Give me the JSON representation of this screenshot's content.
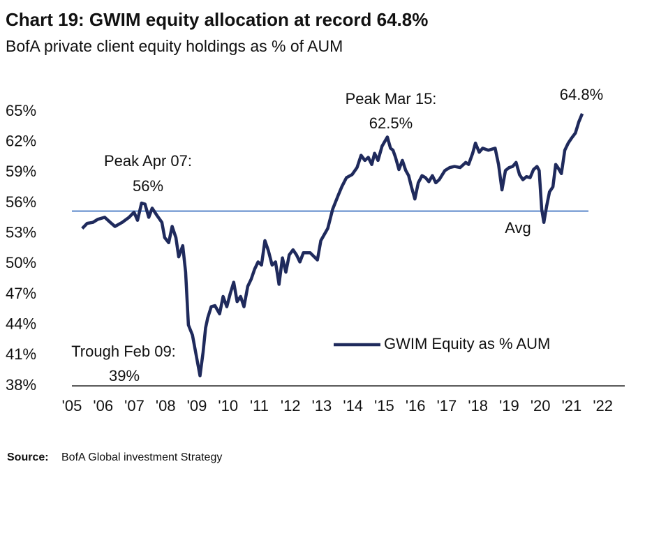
{
  "chart_data": {
    "type": "line",
    "title": "Chart 19: GWIM equity allocation at record 64.8%",
    "subtitle": "BofA private client equity holdings as % of AUM",
    "source_label": "Source:",
    "source": "BofA Global investment Strategy",
    "annotations": [
      {
        "text": "Peak Apr 07:",
        "value_text": "56%"
      },
      {
        "text": "Trough Feb 09:",
        "value_text": "39%"
      },
      {
        "text": "Peak Mar 15:",
        "value_text": "62.5%"
      },
      {
        "value_text": "64.8%"
      }
    ],
    "average": 55.2,
    "average_label": "Avg",
    "legend": "bottom-right",
    "xlim": [
      2005,
      2022.7
    ],
    "xticks": [
      {
        "value": 2005,
        "label": "'05"
      },
      {
        "value": 2006,
        "label": "'06"
      },
      {
        "value": 2007,
        "label": "'07"
      },
      {
        "value": 2008,
        "label": "'08"
      },
      {
        "value": 2009,
        "label": "'09"
      },
      {
        "value": 2010,
        "label": "'10"
      },
      {
        "value": 2011,
        "label": "'11"
      },
      {
        "value": 2012,
        "label": "'12"
      },
      {
        "value": 2013,
        "label": "'13"
      },
      {
        "value": 2014,
        "label": "'14"
      },
      {
        "value": 2015,
        "label": "'15"
      },
      {
        "value": 2016,
        "label": "'16"
      },
      {
        "value": 2017,
        "label": "'17"
      },
      {
        "value": 2018,
        "label": "'18"
      },
      {
        "value": 2019,
        "label": "'19"
      },
      {
        "value": 2020,
        "label": "'20"
      },
      {
        "value": 2021,
        "label": "'21"
      },
      {
        "value": 2022,
        "label": "'22"
      }
    ],
    "ylim": [
      38,
      65
    ],
    "yticks": [
      {
        "value": 38,
        "label": "38%"
      },
      {
        "value": 41,
        "label": "41%"
      },
      {
        "value": 44,
        "label": "44%"
      },
      {
        "value": 47,
        "label": "47%"
      },
      {
        "value": 50,
        "label": "50%"
      },
      {
        "value": 53,
        "label": "53%"
      },
      {
        "value": 56,
        "label": "56%"
      },
      {
        "value": 59,
        "label": "59%"
      },
      {
        "value": 62,
        "label": "62%"
      },
      {
        "value": 65,
        "label": "65%"
      }
    ],
    "series": [
      {
        "name": "GWIM Equity as % AUM",
        "color": "#1f2a5c",
        "x": [
          2005.33,
          2005.49,
          2005.67,
          2005.83,
          2006.05,
          2006.23,
          2006.38,
          2006.61,
          2006.83,
          2006.99,
          2007.1,
          2007.23,
          2007.34,
          2007.46,
          2007.57,
          2007.72,
          2007.88,
          2007.97,
          2008.1,
          2008.21,
          2008.33,
          2008.42,
          2008.55,
          2008.64,
          2008.73,
          2008.86,
          2009.1,
          2009.2,
          2009.28,
          2009.35,
          2009.46,
          2009.58,
          2009.73,
          2009.84,
          2009.96,
          2010.07,
          2010.18,
          2010.29,
          2010.4,
          2010.51,
          2010.63,
          2010.74,
          2010.85,
          2010.96,
          2011.07,
          2011.18,
          2011.29,
          2011.41,
          2011.52,
          2011.63,
          2011.74,
          2011.85,
          2011.96,
          2012.08,
          2012.19,
          2012.3,
          2012.41,
          2012.63,
          2012.86,
          2012.97,
          2013.19,
          2013.35,
          2013.53,
          2013.64,
          2013.79,
          2013.97,
          2014.13,
          2014.26,
          2014.38,
          2014.49,
          2014.6,
          2014.69,
          2014.8,
          2014.93,
          2015.1,
          2015.2,
          2015.28,
          2015.36,
          2015.47,
          2015.58,
          2015.69,
          2015.78,
          2015.87,
          2015.98,
          2016.09,
          2016.21,
          2016.32,
          2016.43,
          2016.54,
          2016.65,
          2016.76,
          2016.94,
          2017.1,
          2017.25,
          2017.43,
          2017.61,
          2017.7,
          2017.83,
          2017.92,
          2018.04,
          2018.15,
          2018.33,
          2018.55,
          2018.66,
          2018.77,
          2018.88,
          2019.0,
          2019.11,
          2019.22,
          2019.33,
          2019.44,
          2019.55,
          2019.67,
          2019.78,
          2019.89,
          2019.96,
          2020.04,
          2020.11,
          2020.2,
          2020.29,
          2020.4,
          2020.49,
          2020.56,
          2020.67,
          2020.78,
          2020.89,
          2021.0,
          2021.12,
          2021.23,
          2021.34
        ],
        "values": [
          53.5,
          54.0,
          54.1,
          54.4,
          54.6,
          54.1,
          53.7,
          54.1,
          54.6,
          55.1,
          54.3,
          56.0,
          55.9,
          54.6,
          55.5,
          54.8,
          54.1,
          52.6,
          52.1,
          53.7,
          52.6,
          50.7,
          51.8,
          49.2,
          44.0,
          43.0,
          39.0,
          41.3,
          43.7,
          44.7,
          45.8,
          45.9,
          45.1,
          46.8,
          45.8,
          47.1,
          48.2,
          46.3,
          46.8,
          45.8,
          47.8,
          48.5,
          49.5,
          50.2,
          49.9,
          52.3,
          51.3,
          49.9,
          50.2,
          48.0,
          50.6,
          49.2,
          50.9,
          51.4,
          50.9,
          50.2,
          51.1,
          51.1,
          50.4,
          52.3,
          53.5,
          55.4,
          56.8,
          57.6,
          58.5,
          58.8,
          59.5,
          60.7,
          60.2,
          60.5,
          59.8,
          60.9,
          60.2,
          61.6,
          62.5,
          61.4,
          61.2,
          60.5,
          59.3,
          60.2,
          59.2,
          58.7,
          57.6,
          56.4,
          58.0,
          58.7,
          58.5,
          58.1,
          58.7,
          58.0,
          58.3,
          59.2,
          59.5,
          59.6,
          59.5,
          60.0,
          59.8,
          60.9,
          61.9,
          61.0,
          61.4,
          61.2,
          61.4,
          59.8,
          57.3,
          59.2,
          59.5,
          59.6,
          60.0,
          58.8,
          58.3,
          58.6,
          58.5,
          59.3,
          59.6,
          59.2,
          55.4,
          54.1,
          55.7,
          57.1,
          57.6,
          59.8,
          59.5,
          58.9,
          61.2,
          61.9,
          62.4,
          62.9,
          64.0,
          64.8
        ]
      }
    ]
  }
}
